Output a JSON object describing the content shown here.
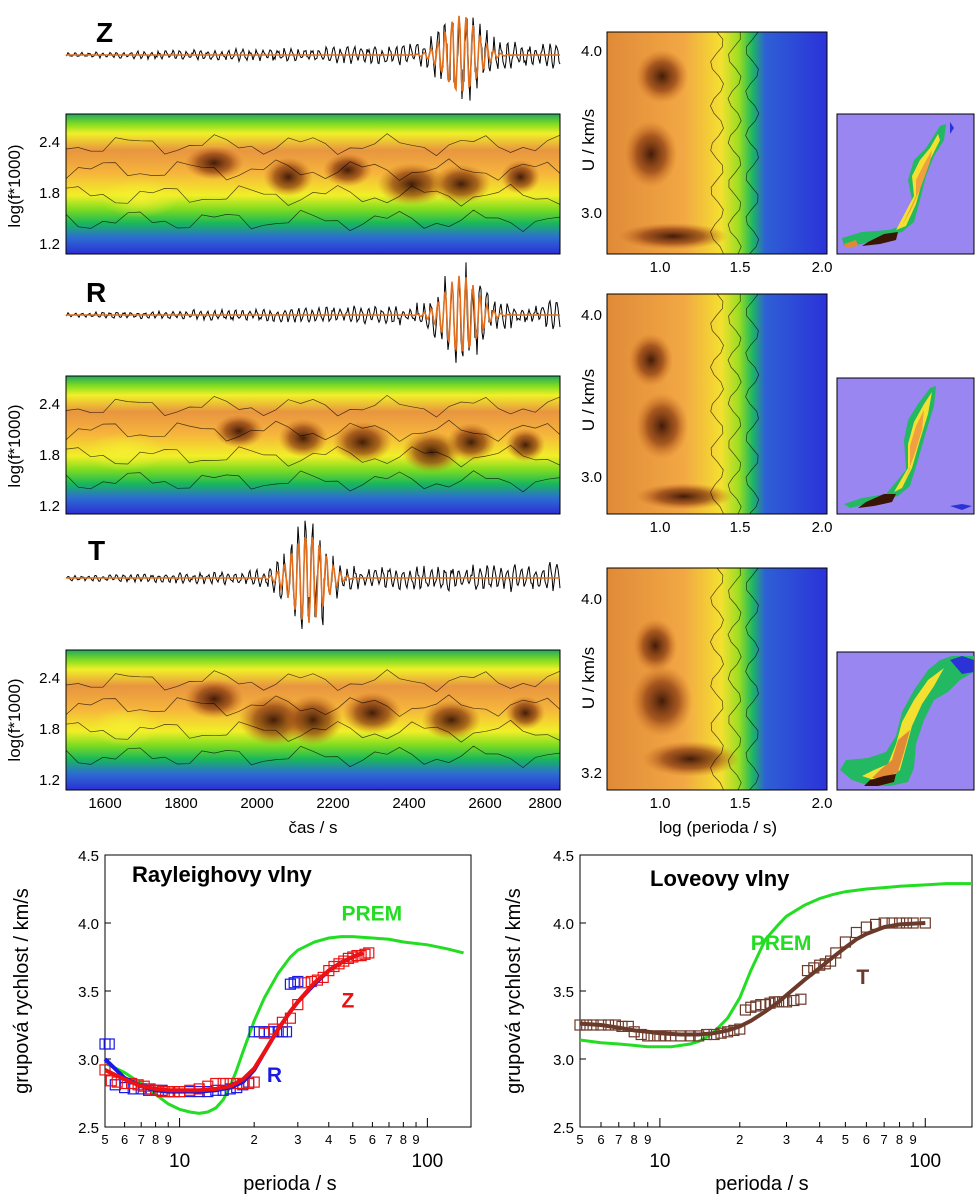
{
  "colors": {
    "prem": "#22dd22",
    "z": "#ee1111",
    "r": "#1a1ae6",
    "t": "#6b3a2a",
    "seismogram": "#000000",
    "filtered": "#e07020",
    "ftan_low": "#1d2bd8",
    "ftan_high": "#3a1405",
    "panel_bg": "#9a86f0"
  },
  "top": {
    "components": [
      "Z",
      "R",
      "T"
    ],
    "ftan_ylabel": "log(f*1000)",
    "ftan_yticks": [
      "2.4",
      "1.8",
      "1.2"
    ],
    "time_xlabel": "čas / s",
    "time_xticks": [
      "1600",
      "1800",
      "2000",
      "2200",
      "2400",
      "2600",
      "2800"
    ],
    "velocity_ylabel": "U / km/s",
    "velocity_yticks_z": [
      "4.0",
      "3.0"
    ],
    "velocity_yticks_r": [
      "4.0",
      "3.0"
    ],
    "velocity_yticks_t": [
      "4.0",
      "3.2"
    ],
    "period_xlabel": "log (perioda / s)",
    "period_xticks": [
      "1.0",
      "1.5",
      "2.0"
    ]
  },
  "chart_data": [
    {
      "type": "scatter",
      "title": "Rayleighovy vlny",
      "xlabel": "perioda / s",
      "ylabel": "grupová rychlost / km/s",
      "xscale": "log",
      "xlim": [
        5,
        150
      ],
      "ylim": [
        2.5,
        4.5
      ],
      "yticks": [
        "4.5",
        "4.0",
        "3.5",
        "3.0",
        "2.5"
      ],
      "xticks_minor": [
        "5",
        "6",
        "7",
        "8",
        "9",
        "2",
        "3",
        "4",
        "5",
        "6",
        "7",
        "8",
        "9"
      ],
      "xticks_major": [
        "10",
        "100"
      ],
      "grid": false,
      "series": [
        {
          "name": "PREM",
          "style": "line",
          "color": "#22dd22",
          "x": [
            5,
            6,
            7,
            8,
            9,
            10,
            11,
            12,
            13,
            14,
            15,
            16,
            17,
            18,
            20,
            22,
            25,
            28,
            30,
            35,
            40,
            45,
            50,
            60,
            70,
            80,
            100,
            120,
            140
          ],
          "y": [
            2.97,
            2.9,
            2.82,
            2.74,
            2.67,
            2.63,
            2.61,
            2.6,
            2.61,
            2.64,
            2.7,
            2.8,
            2.92,
            3.05,
            3.28,
            3.45,
            3.63,
            3.75,
            3.8,
            3.86,
            3.89,
            3.9,
            3.9,
            3.89,
            3.88,
            3.86,
            3.84,
            3.81,
            3.78
          ]
        },
        {
          "name": "R",
          "style": "squares",
          "color": "#1a1ae6",
          "x": [
            5,
            5.2,
            5.5,
            6,
            6.5,
            7,
            7.5,
            8,
            8.5,
            9,
            9.5,
            10,
            11,
            12,
            13,
            14,
            15,
            16,
            17,
            18,
            19,
            20,
            21,
            22,
            23,
            24,
            25,
            26,
            27,
            28,
            29,
            30
          ],
          "y": [
            3.11,
            3.11,
            2.81,
            2.79,
            2.78,
            2.78,
            2.77,
            2.77,
            2.77,
            2.76,
            2.76,
            2.76,
            2.76,
            2.76,
            2.76,
            2.77,
            2.77,
            2.78,
            2.79,
            2.81,
            2.83,
            3.2,
            3.2,
            3.2,
            3.2,
            3.2,
            3.2,
            3.2,
            3.2,
            3.55,
            3.56,
            3.57
          ]
        },
        {
          "name": "Z",
          "style": "squares",
          "color": "#ee1111",
          "x": [
            5,
            5.3,
            5.6,
            6,
            6.4,
            6.8,
            7.2,
            7.6,
            8,
            8.5,
            9,
            9.5,
            10,
            11,
            12,
            13,
            14,
            15,
            16,
            17,
            18,
            19,
            20,
            22,
            24,
            26,
            28,
            30,
            32,
            34,
            36,
            38,
            40,
            42,
            44,
            46,
            48,
            50,
            52,
            54,
            56,
            58
          ],
          "y": [
            2.92,
            2.84,
            2.83,
            2.82,
            2.82,
            2.81,
            2.8,
            2.78,
            2.77,
            2.76,
            2.76,
            2.76,
            2.76,
            2.77,
            2.78,
            2.8,
            2.82,
            2.82,
            2.82,
            2.82,
            2.82,
            2.82,
            2.83,
            3.19,
            3.22,
            3.27,
            3.3,
            3.4,
            3.56,
            3.57,
            3.58,
            3.6,
            3.65,
            3.68,
            3.7,
            3.72,
            3.74,
            3.75,
            3.76,
            3.76,
            3.77,
            3.78
          ]
        },
        {
          "name": "R fit",
          "style": "line",
          "color": "#1a1ae6",
          "x": [
            5,
            6,
            7,
            8,
            9,
            10,
            12,
            14,
            16,
            18,
            20,
            22,
            25,
            28,
            30,
            35,
            40,
            45,
            50,
            55
          ],
          "y": [
            3.0,
            2.86,
            2.8,
            2.77,
            2.76,
            2.76,
            2.76,
            2.77,
            2.79,
            2.83,
            2.92,
            3.05,
            3.22,
            3.35,
            3.42,
            3.55,
            3.65,
            3.71,
            3.75,
            3.78
          ]
        },
        {
          "name": "Z fit",
          "style": "line",
          "color": "#ee1111",
          "x": [
            5,
            6,
            7,
            8,
            9,
            10,
            12,
            14,
            16,
            18,
            20,
            22,
            25,
            28,
            30,
            35,
            40,
            45,
            50,
            55
          ],
          "y": [
            2.92,
            2.85,
            2.8,
            2.78,
            2.77,
            2.77,
            2.77,
            2.78,
            2.8,
            2.85,
            2.93,
            3.05,
            3.22,
            3.35,
            3.42,
            3.56,
            3.65,
            3.71,
            3.75,
            3.78
          ]
        }
      ],
      "annotations": [
        {
          "text": "PREM",
          "color": "#22dd22",
          "x": 45,
          "y": 4.02
        },
        {
          "text": "Z",
          "color": "#ee1111",
          "x": 45,
          "y": 3.38
        },
        {
          "text": "R",
          "color": "#1a1ae6",
          "x": 22.5,
          "y": 2.83
        }
      ]
    },
    {
      "type": "scatter",
      "title": "Loveovy vlny",
      "xlabel": "perioda / s",
      "ylabel": "grupová rychlost / km/s",
      "xscale": "log",
      "xlim": [
        5,
        150
      ],
      "ylim": [
        2.5,
        4.5
      ],
      "yticks": [
        "4.5",
        "4.0",
        "3.5",
        "3.0",
        "2.5"
      ],
      "xticks_minor": [
        "5",
        "6",
        "7",
        "8",
        "9",
        "2",
        "3",
        "4",
        "5",
        "6",
        "7",
        "8",
        "9"
      ],
      "xticks_major": [
        "10",
        "100"
      ],
      "grid": false,
      "series": [
        {
          "name": "PREM",
          "style": "line",
          "color": "#22dd22",
          "x": [
            5,
            6,
            7,
            8,
            9,
            10,
            11,
            12,
            13,
            14,
            15,
            16,
            18,
            20,
            22,
            25,
            28,
            30,
            35,
            40,
            45,
            50,
            60,
            70,
            80,
            100,
            120,
            150
          ],
          "y": [
            3.14,
            3.12,
            3.11,
            3.1,
            3.09,
            3.09,
            3.09,
            3.1,
            3.11,
            3.13,
            3.16,
            3.2,
            3.3,
            3.45,
            3.65,
            3.88,
            3.99,
            4.05,
            4.13,
            4.18,
            4.21,
            4.23,
            4.25,
            4.26,
            4.27,
            4.28,
            4.29,
            4.29
          ]
        },
        {
          "name": "T",
          "style": "squares",
          "color": "#6b3a2a",
          "x": [
            5,
            5.3,
            5.6,
            6,
            6.4,
            6.8,
            7.2,
            7.6,
            8,
            8.5,
            9,
            9.5,
            10,
            10.5,
            11,
            12,
            13,
            14,
            15,
            16,
            17,
            18,
            19,
            20,
            21,
            22,
            23,
            24,
            25,
            26,
            27,
            28,
            29,
            30,
            32,
            34,
            36,
            38,
            40,
            42,
            44,
            46,
            50,
            55,
            60,
            65,
            70,
            75,
            80,
            85,
            90,
            100
          ],
          "y": [
            3.25,
            3.25,
            3.25,
            3.25,
            3.25,
            3.25,
            3.24,
            3.24,
            3.2,
            3.18,
            3.17,
            3.17,
            3.17,
            3.17,
            3.17,
            3.17,
            3.17,
            3.17,
            3.18,
            3.18,
            3.19,
            3.2,
            3.21,
            3.22,
            3.36,
            3.38,
            3.39,
            3.4,
            3.4,
            3.41,
            3.42,
            3.42,
            3.42,
            3.42,
            3.43,
            3.44,
            3.65,
            3.67,
            3.69,
            3.7,
            3.72,
            3.78,
            3.86,
            3.93,
            3.97,
            3.99,
            4.0,
            4.0,
            4.0,
            4.0,
            4.0,
            4.0
          ]
        },
        {
          "name": "T fit",
          "style": "line",
          "color": "#6b3a2a",
          "x": [
            5,
            6,
            7,
            8,
            9,
            10,
            12,
            14,
            16,
            18,
            20,
            22,
            25,
            28,
            30,
            35,
            40,
            45,
            50,
            55,
            60,
            70,
            80,
            100
          ],
          "y": [
            3.26,
            3.25,
            3.23,
            3.21,
            3.2,
            3.19,
            3.18,
            3.18,
            3.19,
            3.21,
            3.24,
            3.28,
            3.35,
            3.42,
            3.47,
            3.58,
            3.67,
            3.75,
            3.82,
            3.88,
            3.92,
            3.97,
            3.99,
            4.0
          ]
        }
      ],
      "annotations": [
        {
          "text": "PREM",
          "color": "#22dd22",
          "x": 22,
          "y": 3.8
        },
        {
          "text": "T",
          "color": "#6b3a2a",
          "x": 55,
          "y": 3.55
        }
      ]
    }
  ]
}
